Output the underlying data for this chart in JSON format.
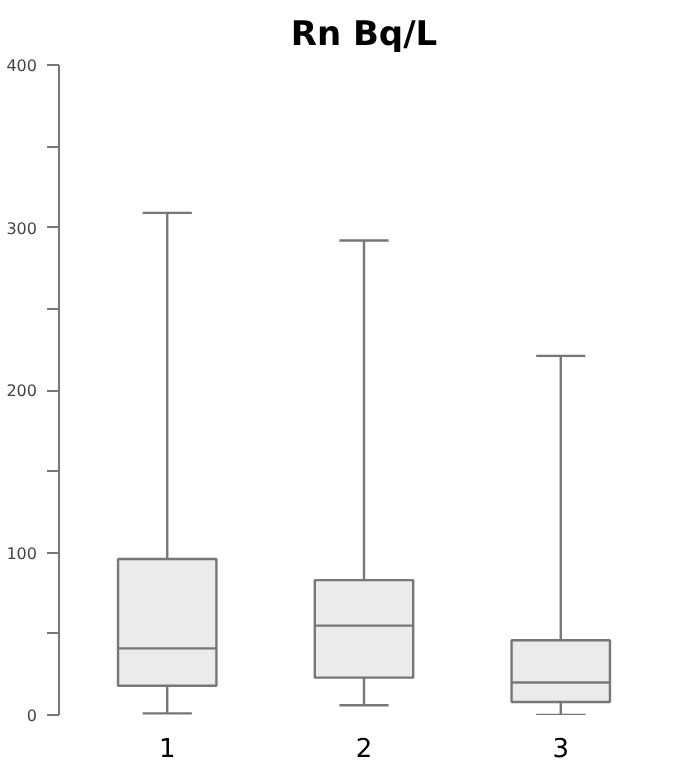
{
  "chart_data": {
    "type": "box",
    "title": "Rn Bq/L",
    "categories": [
      "1",
      "2",
      "3"
    ],
    "boxes": [
      {
        "low": 1,
        "q1": 18,
        "median": 41,
        "q3": 96,
        "high": 309
      },
      {
        "low": 6,
        "q1": 23,
        "median": 55,
        "q3": 83,
        "high": 292
      },
      {
        "low": 0,
        "q1": 8,
        "median": 20,
        "q3": 46,
        "high": 221
      }
    ],
    "color": "#ebebeb",
    "ylim": [
      0,
      400
    ],
    "yticks": [
      0,
      {
        "value": 50,
        "label": null
      },
      100,
      {
        "value": 150,
        "label": null
      },
      200,
      {
        "value": 250,
        "label": null
      },
      300,
      {
        "value": 350,
        "label": null
      },
      400
    ],
    "grid": false
  }
}
